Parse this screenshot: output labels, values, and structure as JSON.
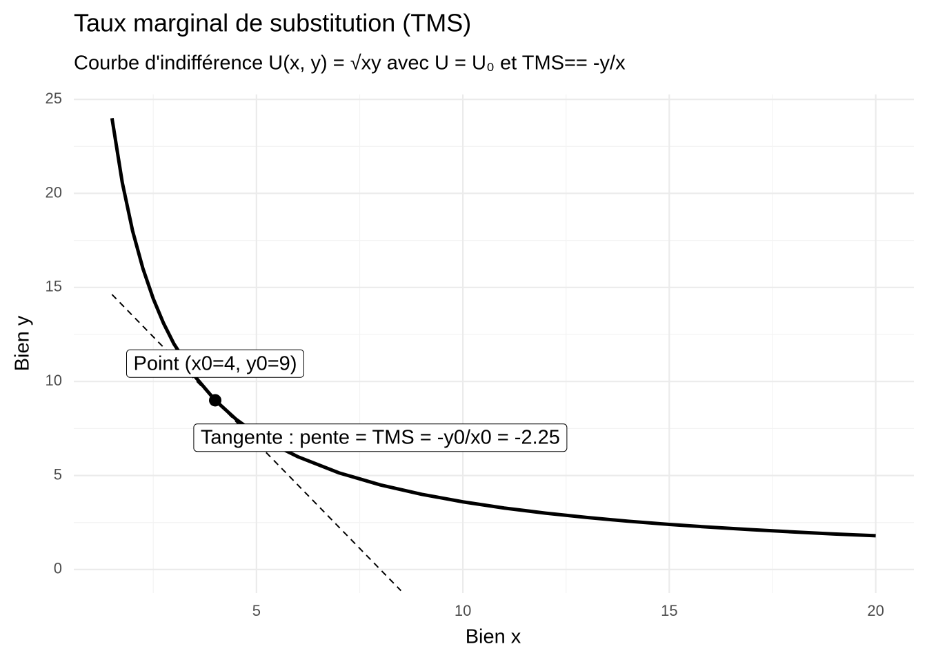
{
  "chart_data": {
    "type": "line",
    "title": "Taux marginal de substitution (TMS)",
    "subtitle": "Courbe d'indifférence  U(x, y) = √xy  avec  U = U₀  et  TMS== -y/x",
    "x_label": "Bien x",
    "y_label": "Bien y",
    "xlim": [
      0.575,
      20.925
    ],
    "ylim": [
      -1.25,
      25.26
    ],
    "xticks": [
      5,
      10,
      15,
      20
    ],
    "yticks": [
      0,
      5,
      10,
      15,
      20,
      25
    ],
    "xminor": [
      2.5,
      7.5,
      12.5,
      17.5
    ],
    "yminor": [
      2.5,
      7.5,
      12.5,
      17.5,
      22.5
    ],
    "grid": true,
    "series": [
      {
        "color": "#000000",
        "style": "solid",
        "x": [
          1.5,
          1.75,
          2,
          2.25,
          2.5,
          2.75,
          3,
          3.5,
          4,
          4.5,
          5,
          5.5,
          6,
          7,
          8,
          9,
          10,
          11,
          12,
          13,
          14,
          15,
          16,
          17,
          18,
          19,
          20
        ],
        "values": [
          24,
          20.57,
          18,
          16,
          14.4,
          13.09,
          12,
          10.29,
          9,
          8,
          7.2,
          6.55,
          6,
          5.14,
          4.5,
          4,
          3.6,
          3.27,
          3,
          2.77,
          2.57,
          2.4,
          2.25,
          2.12,
          2,
          1.89,
          1.8
        ]
      },
      {
        "color": "#000000",
        "style": "dashed",
        "x": [
          1.5,
          8.5
        ],
        "values": [
          14.625,
          -1.125
        ]
      }
    ],
    "points": [
      {
        "x": 4,
        "y": 9,
        "color": "#000000"
      }
    ],
    "annotations": [
      {
        "text": "Point (x0=4, y0=9)",
        "x": 4,
        "y": 10.9
      },
      {
        "text": "Tangente : pente = TMS = -y0/x0 = -2.25",
        "x": 8,
        "y": 6.96
      }
    ]
  }
}
